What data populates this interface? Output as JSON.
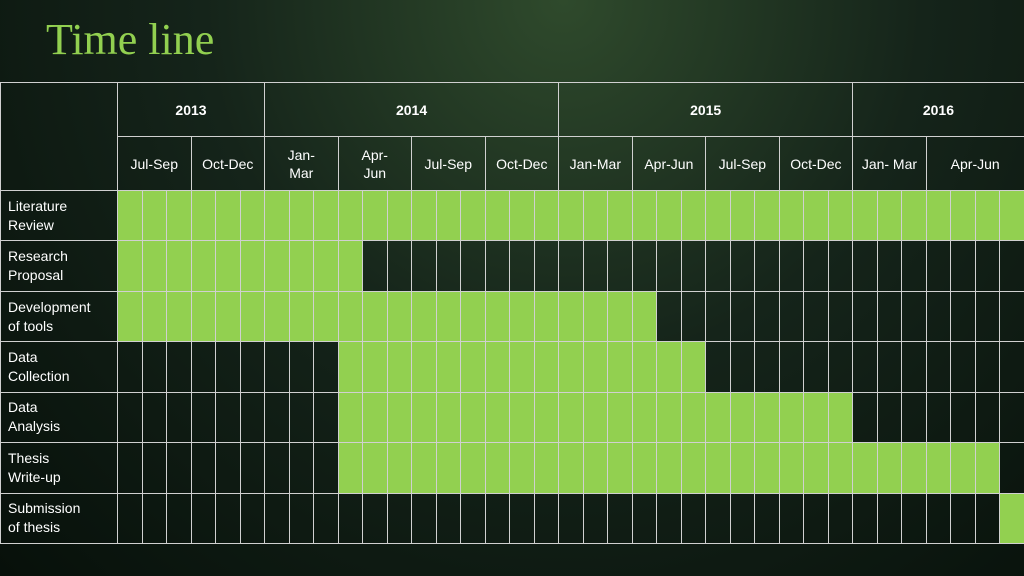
{
  "title": "Time line",
  "colors": {
    "active": "#92d050",
    "grid": "#d0d0d0",
    "text": "#ffffff"
  },
  "years": [
    {
      "label": "2013",
      "span": 6
    },
    {
      "label": "2014",
      "span": 12
    },
    {
      "label": "2015",
      "span": 12
    },
    {
      "label": "2016",
      "span": 7
    }
  ],
  "periods": [
    {
      "label": "Jul-Sep",
      "span": 3
    },
    {
      "label": "Oct-Dec",
      "span": 3
    },
    {
      "label": "Jan-\nMar",
      "span": 3
    },
    {
      "label": "Apr-\nJun",
      "span": 3
    },
    {
      "label": "Jul-Sep",
      "span": 3
    },
    {
      "label": "Oct-Dec",
      "span": 3
    },
    {
      "label": "Jan-Mar",
      "span": 3
    },
    {
      "label": "Apr-Jun",
      "span": 3
    },
    {
      "label": "Jul-Sep",
      "span": 3
    },
    {
      "label": "Oct-Dec",
      "span": 3
    },
    {
      "label": "Jan- Mar",
      "span": 3
    },
    {
      "label": "Apr-Jun",
      "span": 4
    }
  ],
  "tasks": [
    {
      "label": "Literature\nReview",
      "active_from": 1,
      "active_to": 37
    },
    {
      "label": "Research\nProposal",
      "active_from": 1,
      "active_to": 10
    },
    {
      "label": "Development\nof tools",
      "active_from": 1,
      "active_to": 22
    },
    {
      "label": "Data\nCollection",
      "active_from": 10,
      "active_to": 24
    },
    {
      "label": "Data\nAnalysis",
      "active_from": 10,
      "active_to": 30
    },
    {
      "label": "Thesis\nWrite-up",
      "active_from": 10,
      "active_to": 36
    },
    {
      "label": "Submission\nof thesis",
      "active_from": 37,
      "active_to": 37
    }
  ],
  "total_subcolumns": 37
}
